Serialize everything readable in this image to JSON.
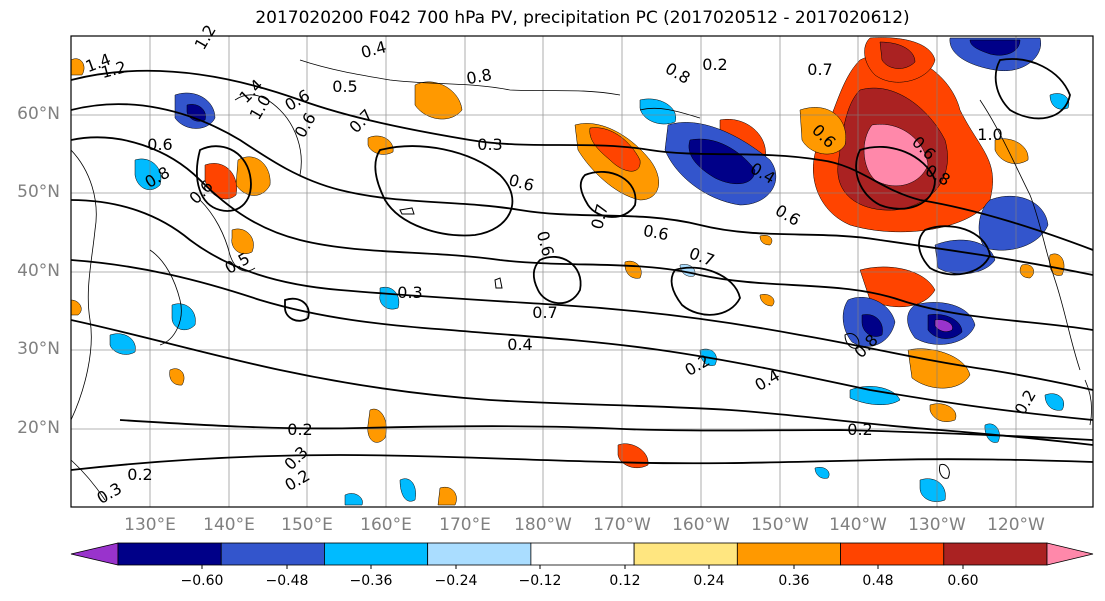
{
  "title": "2017020200 F042 700 hPa PV, precipitation PC (2017020512 - 2017020612)",
  "lat_labels": [
    "60°N",
    "50°N",
    "40°N",
    "30°N",
    "20°N"
  ],
  "lon_labels": [
    "130°E",
    "140°E",
    "150°E",
    "160°E",
    "170°E",
    "180°W",
    "170°W",
    "160°W",
    "150°W",
    "140°W",
    "130°W",
    "120°W"
  ],
  "colorbar": {
    "colors": [
      "#9933cc",
      "#000088",
      "#3355cc",
      "#00bbff",
      "#aaddff",
      "#ffffff",
      "#ffe680",
      "#ff9900",
      "#ff4400",
      "#aa2222",
      "#ff88aa"
    ],
    "tick_labels": [
      "−0.60",
      "−0.48",
      "−0.36",
      "−0.24",
      "−0.12",
      "0.12",
      "0.24",
      "0.36",
      "0.48",
      "0.60"
    ]
  },
  "contour_labels": [
    "1.4",
    "1.2",
    "1.2",
    "0.4",
    "0.8",
    "0.2",
    "1.4",
    "1.0",
    "0.6",
    "0.5",
    "0.6",
    "0.6",
    "0.8",
    "0.6",
    "0.7",
    "0.6",
    "0.5",
    "0.6",
    "0.7",
    "0.8",
    "0.4",
    "0.6",
    "0.8",
    "1.0",
    "0.6",
    "0.7",
    "0.6",
    "0.7",
    "0.3",
    "0.7",
    "0.4",
    "0.2",
    "0.4",
    "0.8",
    "0.3",
    "0.2",
    "0.2",
    "0.3",
    "0.2",
    "0.2",
    "0.3",
    "0.2",
    "0.6"
  ]
}
